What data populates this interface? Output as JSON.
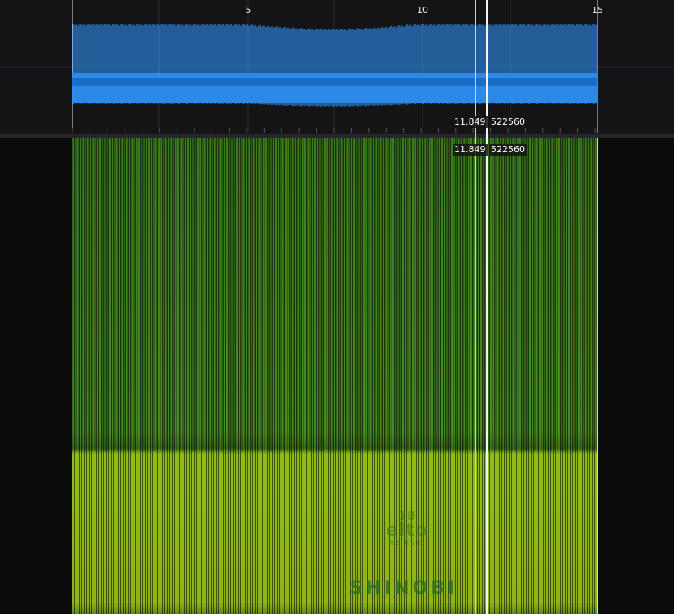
{
  "timeline": {
    "tick_labels": [
      "5",
      "10",
      "15"
    ]
  },
  "cursor": {
    "time_readout": "11.849",
    "sample_readout": "522560"
  },
  "spectrogram_art": {
    "top_mark": "18",
    "top_mark_line2": "elto",
    "top_mark_small": "HE·EVIL",
    "bottom_text": "SHINOBI"
  },
  "colors": {
    "waveform": "#2f8ef0",
    "waveform_dark": "#1a6cc4",
    "spectrogram_low": "#8fb416",
    "spectrogram_high": "#4a8a22",
    "cursor": "#f2f2f2"
  }
}
